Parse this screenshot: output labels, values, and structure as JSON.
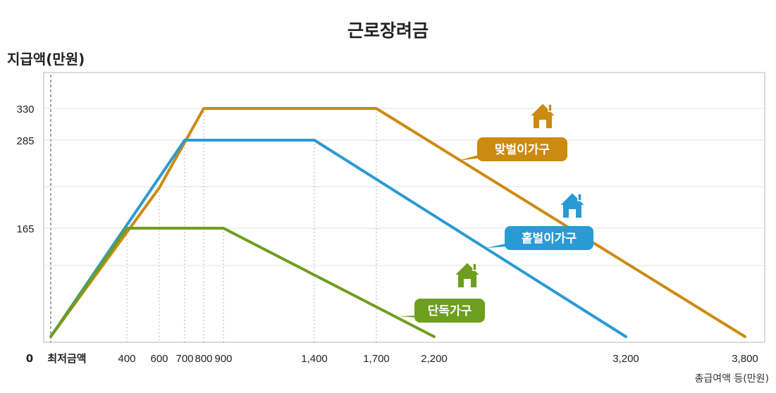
{
  "chart_data": {
    "type": "line",
    "title": "근로장려금",
    "ylabel": "지급액(만원)",
    "xlabel": "총급여액 등(만원)",
    "x_origin_label": "0",
    "x_min_wage_label": "최저금액",
    "x_ticks": [
      400,
      600,
      700,
      800,
      900,
      1400,
      1700,
      2200,
      3200,
      3800
    ],
    "x_tick_labels": [
      "400",
      "600",
      "700",
      "800",
      "900",
      "1,400",
      "1,700",
      "2,200",
      "3,200",
      "3,800"
    ],
    "y_ticks": [
      165,
      285,
      330
    ],
    "y_tick_labels": [
      "165",
      "285",
      "330"
    ],
    "series": [
      {
        "name": "맞벌이가구",
        "color": "#cc8a10",
        "points": [
          [
            0,
            0
          ],
          [
            600,
            220
          ],
          [
            800,
            330
          ],
          [
            1700,
            330
          ],
          [
            3800,
            0
          ]
        ]
      },
      {
        "name": "홑벌이가구",
        "color": "#2a9ad4",
        "points": [
          [
            0,
            0
          ],
          [
            700,
            285
          ],
          [
            1400,
            285
          ],
          [
            3200,
            0
          ]
        ]
      },
      {
        "name": "단독가구",
        "color": "#6e9e1e",
        "points": [
          [
            0,
            0
          ],
          [
            400,
            165
          ],
          [
            900,
            165
          ],
          [
            2200,
            0
          ]
        ]
      }
    ],
    "grid": true
  }
}
